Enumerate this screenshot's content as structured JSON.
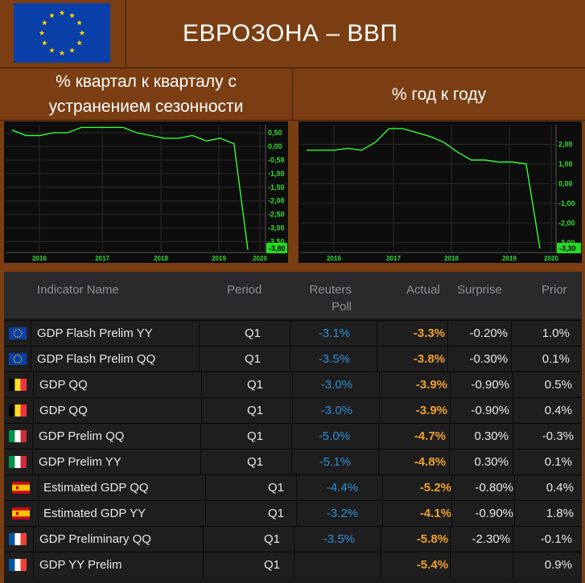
{
  "header": {
    "title": "ЕВРОЗОНА – ВВП",
    "flag_icon": "eu-flag-icon"
  },
  "subheaders": {
    "left_line1": "% квартал к кварталу с",
    "left_line2": "устранением сезонности",
    "right": "% год к году"
  },
  "charts": [
    {
      "name": "qoq-chart",
      "line_color": "#33ff33",
      "x_ticks": [
        "2016",
        "2017",
        "2018",
        "2019",
        "2020"
      ],
      "y_ticks": [
        "0,50",
        "0,00",
        "-0,50",
        "-1,00",
        "-1,50",
        "-2,00",
        "-2,50",
        "-3,00",
        "-3,50"
      ],
      "last_value_label": "-3,80"
    },
    {
      "name": "yoy-chart",
      "line_color": "#33ff33",
      "x_ticks": [
        "2016",
        "2017",
        "2018",
        "2019",
        "2020"
      ],
      "y_ticks": [
        "2,00",
        "1,00",
        "0,00",
        "-1,00",
        "-2,00",
        "-3,00"
      ],
      "last_value_label": "-3,30"
    }
  ],
  "chart_data": [
    {
      "type": "line",
      "ylim": [
        -3.9,
        0.8
      ],
      "x": [
        "2015Q4",
        "2016Q1",
        "2016Q2",
        "2016Q3",
        "2016Q4",
        "2017Q1",
        "2017Q2",
        "2017Q3",
        "2017Q4",
        "2018Q1",
        "2018Q2",
        "2018Q3",
        "2018Q4",
        "2019Q1",
        "2019Q2",
        "2019Q3",
        "2019Q4",
        "2020Q1"
      ],
      "values": [
        0.6,
        0.4,
        0.4,
        0.5,
        0.5,
        0.7,
        0.7,
        0.7,
        0.7,
        0.5,
        0.4,
        0.3,
        0.3,
        0.4,
        0.2,
        0.3,
        0.1,
        -3.8
      ],
      "ytick_values": [
        0.5,
        0.0,
        -0.5,
        -1.0,
        -1.5,
        -2.0,
        -2.5,
        -3.0,
        -3.5
      ]
    },
    {
      "type": "line",
      "ylim": [
        -3.5,
        3.0
      ],
      "x": [
        "2015Q4",
        "2016Q1",
        "2016Q2",
        "2016Q3",
        "2016Q4",
        "2017Q1",
        "2017Q2",
        "2017Q3",
        "2017Q4",
        "2018Q1",
        "2018Q2",
        "2018Q3",
        "2018Q4",
        "2019Q1",
        "2019Q2",
        "2019Q3",
        "2019Q4",
        "2020Q1"
      ],
      "values": [
        1.7,
        1.7,
        1.7,
        1.8,
        1.7,
        2.1,
        2.8,
        2.8,
        2.6,
        2.4,
        2.1,
        1.6,
        1.2,
        1.2,
        1.1,
        1.1,
        1.0,
        -3.3
      ],
      "ytick_values": [
        2.0,
        1.0,
        0.0,
        -1.0,
        -2.0,
        -3.0
      ]
    }
  ],
  "table": {
    "columns": {
      "indicator": "Indicator Name",
      "period": "Period",
      "poll_line1": "Reuters",
      "poll_line2": "Poll",
      "actual": "Actual",
      "surprise": "Surprise",
      "prior": "Prior"
    },
    "rows": [
      {
        "flag": "eu-flag-icon",
        "name": "GDP Flash Prelim YY",
        "period": "Q1",
        "poll": "-3.1%",
        "actual": "-3.3%",
        "surprise": "-0.20%",
        "prior": "1.0%"
      },
      {
        "flag": "eu-flag-icon",
        "name": "GDP Flash Prelim QQ",
        "period": "Q1",
        "poll": "-3.5%",
        "actual": "-3.8%",
        "surprise": "-0.30%",
        "prior": "0.1%"
      },
      {
        "flag": "belgium-flag-icon",
        "name": "GDP QQ",
        "period": "Q1",
        "poll": "-3.0%",
        "actual": "-3.9%",
        "surprise": "-0.90%",
        "prior": "0.5%"
      },
      {
        "flag": "belgium-flag-icon",
        "name": "GDP QQ",
        "period": "Q1",
        "poll": "-3.0%",
        "actual": "-3.9%",
        "surprise": "-0.90%",
        "prior": "0.4%"
      },
      {
        "flag": "italy-flag-icon",
        "name": "GDP Prelim QQ",
        "period": "Q1",
        "poll": "-5.0%",
        "actual": "-4.7%",
        "surprise": "0.30%",
        "prior": "-0.3%"
      },
      {
        "flag": "italy-flag-icon",
        "name": "GDP Prelim YY",
        "period": "Q1",
        "poll": "-5.1%",
        "actual": "-4.8%",
        "surprise": "0.30%",
        "prior": "0.1%"
      },
      {
        "flag": "spain-flag-icon",
        "name": "Estimated GDP QQ",
        "period": "Q1",
        "poll": "-4.4%",
        "actual": "-5.2%",
        "surprise": "-0.80%",
        "prior": "0.4%"
      },
      {
        "flag": "spain-flag-icon",
        "name": "Estimated GDP YY",
        "period": "Q1",
        "poll": "-3.2%",
        "actual": "-4.1%",
        "surprise": "-0.90%",
        "prior": "1.8%"
      },
      {
        "flag": "france-flag-icon",
        "name": "GDP Preliminary QQ",
        "period": "Q1",
        "poll": "-3.5%",
        "actual": "-5.8%",
        "surprise": "-2.30%",
        "prior": "-0.1%"
      },
      {
        "flag": "france-flag-icon",
        "name": "GDP YY Prelim",
        "period": "Q1",
        "poll": "",
        "actual": "-5.4%",
        "surprise": "",
        "prior": "0.9%"
      }
    ]
  }
}
